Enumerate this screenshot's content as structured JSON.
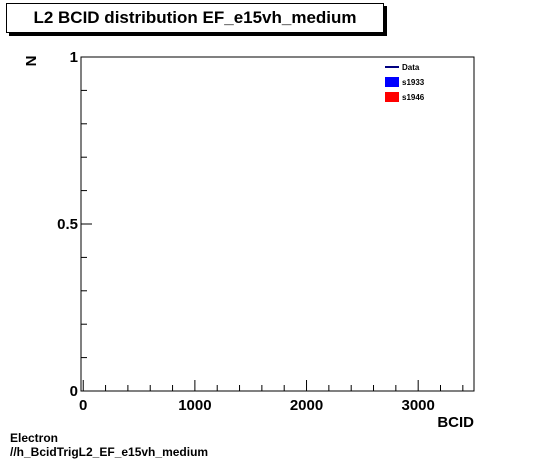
{
  "chart_data": {
    "type": "bar",
    "title": "L2 BCID distribution EF_e15vh_medium",
    "xlabel": "BCID",
    "ylabel": "N",
    "xlim": [
      -20,
      3500
    ],
    "ylim": [
      0,
      1
    ],
    "x_ticks": [
      "0",
      "1000",
      "2000",
      "3000"
    ],
    "y_ticks": [
      "0",
      "0.5",
      "1"
    ],
    "legend_position": "top-right",
    "series": [
      {
        "name": "Data",
        "style": "line",
        "color": "#000080",
        "values": []
      },
      {
        "name": "s1933",
        "style": "fill",
        "color": "#0000ff",
        "values": []
      },
      {
        "name": "s1946",
        "style": "fill",
        "color": "#ff0000",
        "values": []
      }
    ]
  },
  "footer": {
    "line1": "Electron",
    "line2": "//h_BcidTrigL2_EF_e15vh_medium"
  }
}
